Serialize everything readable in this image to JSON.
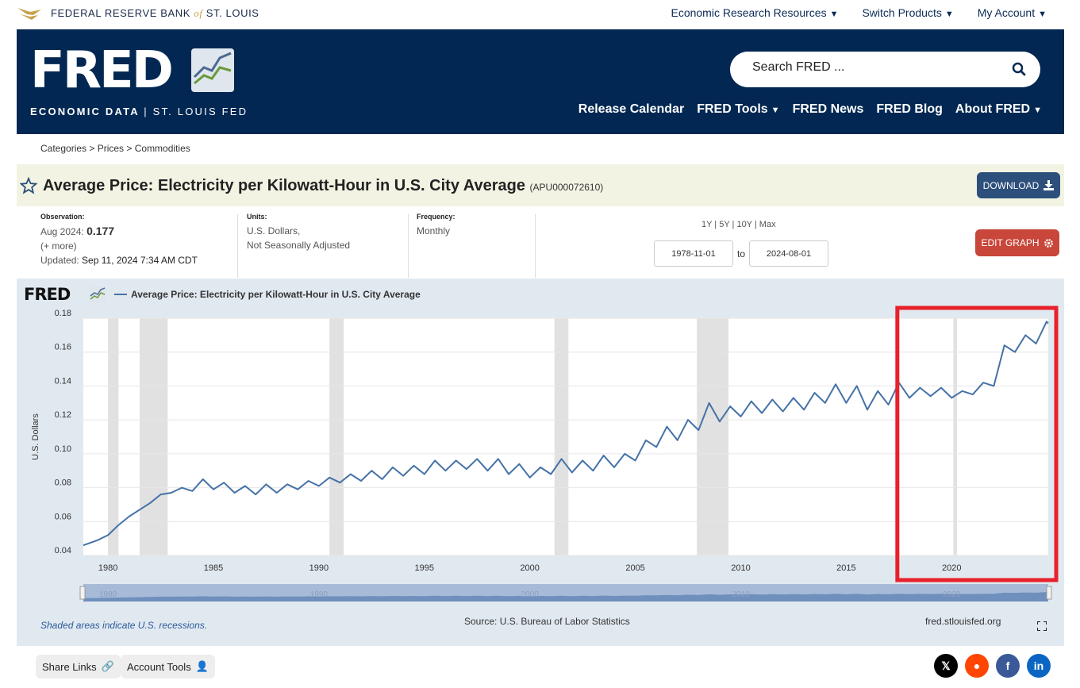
{
  "topbar": {
    "bank_name": "FEDERAL RESERVE BANK",
    "bank_of": "of",
    "bank_city": "ST. LOUIS",
    "links": [
      "Economic Research Resources",
      "Switch Products",
      "My Account"
    ]
  },
  "banner": {
    "logo": "FRED",
    "subtitle_left": "ECONOMIC DATA",
    "subtitle_right": "ST. LOUIS FED",
    "search_placeholder": "Search FRED ...",
    "nav": [
      "Release Calendar",
      "FRED Tools",
      "FRED News",
      "FRED Blog",
      "About FRED"
    ]
  },
  "breadcrumb": "Categories > Prices > Commodities",
  "series": {
    "title": "Average Price: Electricity per Kilowatt-Hour in U.S. City Average",
    "id": "(APU000072610)",
    "download_label": "DOWNLOAD"
  },
  "meta": {
    "observation_label": "Observation:",
    "observation_date": "Aug 2024:",
    "observation_value": "0.177",
    "more": "(+ more)",
    "updated_label": "Updated:",
    "updated_value": "Sep 11, 2024 7:34 AM CDT",
    "units_label": "Units:",
    "units_line1": "U.S. Dollars,",
    "units_line2": "Not Seasonally Adjusted",
    "frequency_label": "Frequency:",
    "frequency_value": "Monthly",
    "range_links": "1Y | 5Y | 10Y | Max",
    "date_from": "1978-11-01",
    "date_to": "2024-08-01",
    "to_label": "to",
    "edit_label": "EDIT GRAPH"
  },
  "graph": {
    "legend_logo": "FRED",
    "shaded_note": "Shaded areas indicate U.S. recessions.",
    "source": "Source: U.S. Bureau of Labor Statistics",
    "url": "fred.stlouisfed.org",
    "navigator_years": [
      "1980",
      "1990",
      "2000",
      "2010",
      "2020"
    ]
  },
  "chart_data": {
    "type": "line",
    "series": [
      {
        "name": "Average Price: Electricity per Kilowatt-Hour in U.S. City Average",
        "x": [
          1978.83,
          1979.5,
          1980.0,
          1980.5,
          1981.0,
          1981.5,
          1982.0,
          1982.5,
          1983.0,
          1983.5,
          1984.0,
          1984.5,
          1985.0,
          1985.5,
          1986.0,
          1986.5,
          1987.0,
          1987.5,
          1988.0,
          1988.5,
          1989.0,
          1989.5,
          1990.0,
          1990.5,
          1991.0,
          1991.5,
          1992.0,
          1992.5,
          1993.0,
          1993.5,
          1994.0,
          1994.5,
          1995.0,
          1995.5,
          1996.0,
          1996.5,
          1997.0,
          1997.5,
          1998.0,
          1998.5,
          1999.0,
          1999.5,
          2000.0,
          2000.5,
          2001.0,
          2001.5,
          2002.0,
          2002.5,
          2003.0,
          2003.5,
          2004.0,
          2004.5,
          2005.0,
          2005.5,
          2006.0,
          2006.5,
          2007.0,
          2007.5,
          2008.0,
          2008.5,
          2009.0,
          2009.5,
          2010.0,
          2010.5,
          2011.0,
          2011.5,
          2012.0,
          2012.5,
          2013.0,
          2013.5,
          2014.0,
          2014.5,
          2015.0,
          2015.5,
          2016.0,
          2016.5,
          2017.0,
          2017.5,
          2018.0,
          2018.5,
          2019.0,
          2019.5,
          2020.0,
          2020.5,
          2021.0,
          2021.5,
          2022.0,
          2022.5,
          2023.0,
          2023.5,
          2024.0,
          2024.5,
          2024.58
        ],
        "values": [
          0.046,
          0.049,
          0.052,
          0.058,
          0.063,
          0.067,
          0.071,
          0.076,
          0.077,
          0.08,
          0.078,
          0.085,
          0.079,
          0.083,
          0.077,
          0.081,
          0.076,
          0.082,
          0.077,
          0.082,
          0.079,
          0.084,
          0.081,
          0.086,
          0.083,
          0.088,
          0.084,
          0.09,
          0.085,
          0.092,
          0.087,
          0.093,
          0.088,
          0.096,
          0.09,
          0.096,
          0.091,
          0.097,
          0.09,
          0.097,
          0.088,
          0.094,
          0.086,
          0.092,
          0.088,
          0.097,
          0.089,
          0.096,
          0.09,
          0.099,
          0.092,
          0.1,
          0.096,
          0.108,
          0.104,
          0.116,
          0.108,
          0.12,
          0.114,
          0.13,
          0.119,
          0.128,
          0.122,
          0.131,
          0.124,
          0.132,
          0.125,
          0.133,
          0.126,
          0.136,
          0.13,
          0.141,
          0.13,
          0.14,
          0.126,
          0.137,
          0.129,
          0.142,
          0.133,
          0.139,
          0.134,
          0.139,
          0.133,
          0.137,
          0.135,
          0.142,
          0.14,
          0.164,
          0.16,
          0.17,
          0.165,
          0.178,
          0.177
        ]
      }
    ],
    "ylabel": "U.S. Dollars",
    "ylim": [
      0.04,
      0.18
    ],
    "xlim": [
      1978.83,
      2024.58
    ],
    "y_ticks": [
      "0.04",
      "0.06",
      "0.08",
      "0.10",
      "0.12",
      "0.14",
      "0.16",
      "0.18"
    ],
    "x_ticks": [
      "1980",
      "1985",
      "1990",
      "1995",
      "2000",
      "2005",
      "2010",
      "2015",
      "2020"
    ],
    "recessions": [
      [
        1980.0,
        1980.5
      ],
      [
        1981.5,
        1982.83
      ],
      [
        1990.5,
        1991.17
      ],
      [
        2001.17,
        2001.83
      ],
      [
        2007.92,
        2009.42
      ],
      [
        2020.08,
        2020.25
      ]
    ],
    "line_color": "#4572a7",
    "grid": true
  },
  "annotation": {
    "highlight_color": "#e8202a",
    "highlight_from": 2017.5,
    "highlight_to": 2024.58
  },
  "bottom": {
    "share_label": "Share Links",
    "account_label": "Account Tools",
    "social": [
      "X",
      "Reddit",
      "Facebook",
      "LinkedIn"
    ]
  }
}
